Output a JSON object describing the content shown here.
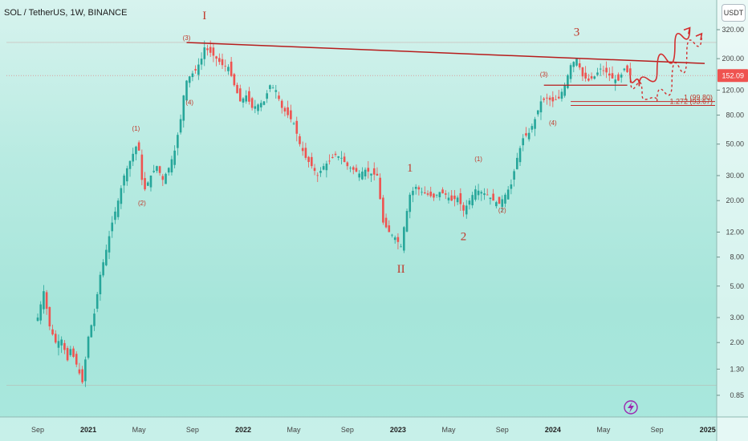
{
  "chart_data": {
    "type": "candlestick",
    "title": "SOL / TetherUS, 1W, BINANCE",
    "currency": "USDT",
    "y_scale": "log",
    "ylim": [
      0.75,
      400
    ],
    "price_ticks": [
      "320.00",
      "200.00",
      "120.00",
      "80.00",
      "50.00",
      "30.00",
      "20.00",
      "12.00",
      "8.00",
      "5.00",
      "3.00",
      "2.00",
      "1.30",
      "0.85"
    ],
    "price_tick_values": [
      320,
      200,
      120,
      80,
      50,
      30,
      20,
      12,
      8,
      5,
      3,
      2,
      1.3,
      0.85
    ],
    "last_price": "152.09",
    "last_price_value": 152.09,
    "x_ticks": [
      {
        "label": "Sep",
        "bold": false
      },
      {
        "label": "2021",
        "bold": true
      },
      {
        "label": "May",
        "bold": false
      },
      {
        "label": "Sep",
        "bold": false
      },
      {
        "label": "2022",
        "bold": true
      },
      {
        "label": "May",
        "bold": false
      },
      {
        "label": "Sep",
        "bold": false
      },
      {
        "label": "2023",
        "bold": true
      },
      {
        "label": "May",
        "bold": false
      },
      {
        "label": "Sep",
        "bold": false
      },
      {
        "label": "2024",
        "bold": true
      },
      {
        "label": "May",
        "bold": false
      },
      {
        "label": "Sep",
        "bold": false
      },
      {
        "label": "2025",
        "bold": true
      }
    ],
    "x_tick_weeks": [
      0,
      17,
      34,
      52,
      69,
      86,
      104,
      121,
      138,
      156,
      173,
      190,
      208,
      225
    ],
    "path_points": [
      [
        0,
        3.0
      ],
      [
        2,
        4.6
      ],
      [
        4,
        2.6
      ],
      [
        6,
        2.0
      ],
      [
        8,
        2.1
      ],
      [
        10,
        1.5
      ],
      [
        11,
        1.8
      ],
      [
        13,
        1.4
      ],
      [
        15,
        1.05
      ],
      [
        17,
        2.2
      ],
      [
        19,
        3.2
      ],
      [
        21,
        6
      ],
      [
        23,
        9
      ],
      [
        25,
        14
      ],
      [
        27,
        20
      ],
      [
        29,
        30
      ],
      [
        31,
        38
      ],
      [
        33,
        48
      ],
      [
        34,
        45
      ],
      [
        35,
        28
      ],
      [
        36,
        24
      ],
      [
        38,
        30
      ],
      [
        40,
        35
      ],
      [
        42,
        28
      ],
      [
        44,
        34
      ],
      [
        46,
        45
      ],
      [
        48,
        75
      ],
      [
        49,
        110
      ],
      [
        50,
        140
      ],
      [
        51,
        150
      ],
      [
        53,
        165
      ],
      [
        55,
        200
      ],
      [
        56,
        240
      ],
      [
        58,
        220
      ],
      [
        60,
        200
      ],
      [
        62,
        180
      ],
      [
        64,
        175
      ],
      [
        66,
        130
      ],
      [
        68,
        100
      ],
      [
        70,
        110
      ],
      [
        72,
        90
      ],
      [
        74,
        95
      ],
      [
        76,
        100
      ],
      [
        78,
        130
      ],
      [
        80,
        120
      ],
      [
        82,
        90
      ],
      [
        84,
        80
      ],
      [
        86,
        70
      ],
      [
        88,
        50
      ],
      [
        90,
        40
      ],
      [
        92,
        35
      ],
      [
        94,
        30
      ],
      [
        96,
        35
      ],
      [
        98,
        38
      ],
      [
        100,
        42
      ],
      [
        102,
        40
      ],
      [
        104,
        35
      ],
      [
        106,
        33
      ],
      [
        108,
        31
      ],
      [
        110,
        33
      ],
      [
        112,
        31
      ],
      [
        114,
        30
      ],
      [
        116,
        14
      ],
      [
        118,
        12
      ],
      [
        120,
        11
      ],
      [
        122,
        9.5
      ],
      [
        123,
        13
      ],
      [
        125,
        22
      ],
      [
        127,
        25
      ],
      [
        129,
        23
      ],
      [
        131,
        22
      ],
      [
        133,
        21
      ],
      [
        135,
        23
      ],
      [
        137,
        22
      ],
      [
        139,
        20
      ],
      [
        141,
        21
      ],
      [
        143,
        17
      ],
      [
        145,
        20
      ],
      [
        147,
        24
      ],
      [
        149,
        23
      ],
      [
        151,
        22
      ],
      [
        153,
        20
      ],
      [
        155,
        19
      ],
      [
        157,
        22
      ],
      [
        159,
        26
      ],
      [
        161,
        40
      ],
      [
        163,
        55
      ],
      [
        165,
        60
      ],
      [
        167,
        75
      ],
      [
        169,
        100
      ],
      [
        171,
        105
      ],
      [
        173,
        100
      ],
      [
        175,
        105
      ],
      [
        177,
        130
      ],
      [
        179,
        180
      ],
      [
        181,
        200
      ],
      [
        183,
        150
      ],
      [
        185,
        140
      ],
      [
        187,
        150
      ],
      [
        189,
        170
      ],
      [
        191,
        160
      ],
      [
        193,
        145
      ],
      [
        195,
        140
      ],
      [
        197,
        170
      ],
      [
        199,
        152
      ]
    ],
    "wave_labels": [
      {
        "text": "I",
        "week": 56,
        "price": 380,
        "size": "big"
      },
      {
        "text": "II",
        "week": 122,
        "price": 6.2,
        "size": "big"
      },
      {
        "text": "1",
        "week": 125,
        "price": 32,
        "size": "big"
      },
      {
        "text": "2",
        "week": 143,
        "price": 10.5,
        "size": "big"
      },
      {
        "text": "3",
        "week": 181,
        "price": 290,
        "size": "big"
      },
      {
        "text": "(1)",
        "week": 33,
        "price": 62,
        "size": "small"
      },
      {
        "text": "(2)",
        "week": 35,
        "price": 18.5,
        "size": "small"
      },
      {
        "text": "(3)",
        "week": 50,
        "price": 270,
        "size": "small"
      },
      {
        "text": "(4)",
        "week": 51,
        "price": 95,
        "size": "small"
      },
      {
        "text": "(1)",
        "week": 148,
        "price": 38,
        "size": "small"
      },
      {
        "text": "(2)",
        "week": 156,
        "price": 16.5,
        "size": "small"
      },
      {
        "text": "(3)",
        "week": 170,
        "price": 150,
        "size": "small"
      },
      {
        "text": "(4)",
        "week": 173,
        "price": 68,
        "size": "small"
      }
    ],
    "resistance_line": [
      [
        50,
        260
      ],
      [
        224,
        185
      ]
    ],
    "support_line": [
      [
        170,
        130
      ],
      [
        198,
        130
      ]
    ],
    "fib_levels": [
      {
        "label": "1 (99.80)",
        "price": 99.8
      },
      {
        "label": "1.272 (93.67)",
        "price": 93.67
      }
    ],
    "projection_solid": [
      [
        199,
        152
      ],
      [
        202,
        128
      ],
      [
        208,
        160
      ],
      [
        214,
        250
      ],
      [
        219,
        330
      ]
    ],
    "projection_dashed": [
      [
        199,
        152
      ],
      [
        203,
        110
      ],
      [
        208,
        100
      ],
      [
        213,
        135
      ],
      [
        218,
        220
      ],
      [
        223,
        300
      ]
    ]
  }
}
